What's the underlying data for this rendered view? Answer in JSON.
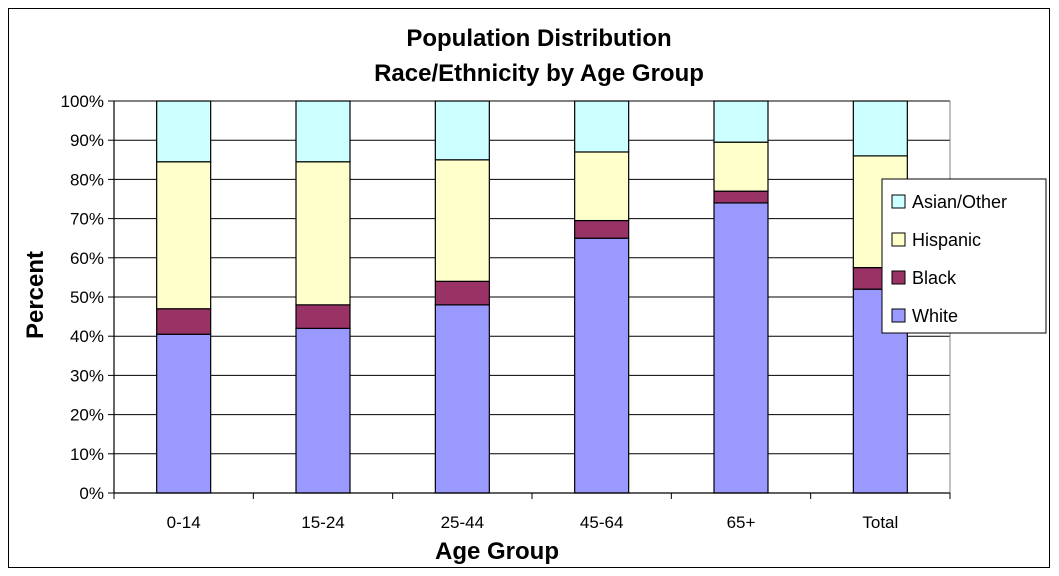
{
  "chart_data": {
    "type": "bar",
    "stacked": true,
    "title": "Population Distribution",
    "subtitle": "Race/Ethnicity by Age Group",
    "xlabel": "Age Group",
    "ylabel": "Percent",
    "categories": [
      "0-14",
      "15-24",
      "25-44",
      "45-64",
      "65+",
      "Total"
    ],
    "ylim": [
      0,
      100
    ],
    "yticks": [
      0,
      10,
      20,
      30,
      40,
      50,
      60,
      70,
      80,
      90,
      100
    ],
    "ytick_labels": [
      "0%",
      "10%",
      "20%",
      "30%",
      "40%",
      "50%",
      "60%",
      "70%",
      "80%",
      "90%",
      "100%"
    ],
    "grid": true,
    "legend_position": "right",
    "series": [
      {
        "name": "White",
        "color": "#9999ff",
        "values": [
          40.5,
          42,
          48,
          65,
          74,
          52
        ]
      },
      {
        "name": "Black",
        "color": "#993366",
        "values": [
          6.5,
          6,
          6,
          4.5,
          3,
          5.5
        ]
      },
      {
        "name": "Hispanic",
        "color": "#ffffcc",
        "values": [
          37.5,
          36.5,
          31,
          17.5,
          12.5,
          28.5
        ]
      },
      {
        "name": "Asian/Other",
        "color": "#ccffff",
        "values": [
          15.5,
          15.5,
          15,
          13,
          10.5,
          14
        ]
      }
    ]
  }
}
